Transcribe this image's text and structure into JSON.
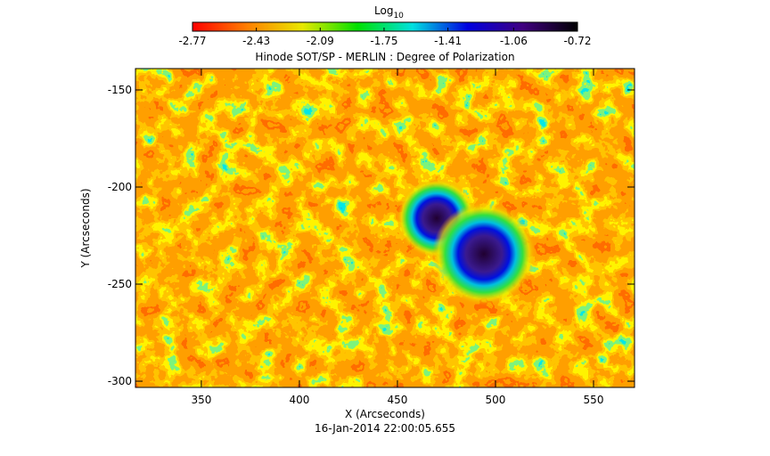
{
  "chart_data": {
    "type": "image",
    "title": "Hinode SOT/SP - MERLIN : Degree of Polarization",
    "xlabel": "X (Arcseconds)",
    "ylabel": "Y (Arcseconds)",
    "footer": "16-Jan-2014 22:00:05.655",
    "colorbar_label": "Log",
    "colorbar_label_sub": "10",
    "clim": [
      -2.77,
      -0.72
    ],
    "cticks": [
      -2.77,
      -2.43,
      -2.09,
      -1.75,
      -1.41,
      -1.06,
      -0.72
    ],
    "colormap": [
      "#ff0000",
      "#ff8000",
      "#e8e800",
      "#00e000",
      "#00e0e0",
      "#0000e0",
      "#400080",
      "#000000"
    ],
    "xlim": [
      316.4,
      570.9
    ],
    "xticks": [
      350,
      400,
      450,
      500,
      550
    ],
    "ylim": [
      -303.2,
      -139
    ],
    "yticks": [
      -150,
      -200,
      -250,
      -300
    ]
  }
}
